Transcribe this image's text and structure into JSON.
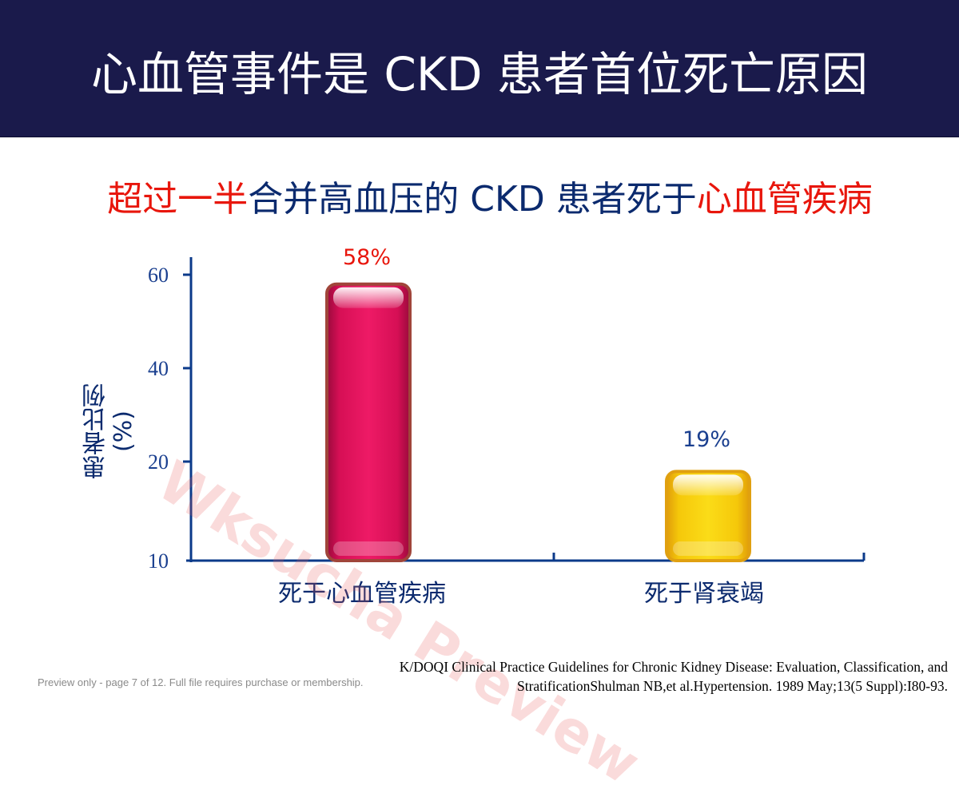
{
  "header": {
    "title": "心血管事件是 CKD 患者首位死亡原因"
  },
  "subtitle": {
    "part1": "超过一半",
    "part2": "合并高血压的 CKD 患者死于",
    "part3": "心血管疾病"
  },
  "colors": {
    "header_bg": "#1a1a4b",
    "highlight_red": "#e8160c",
    "text_blue": "#0b2a6e",
    "bar_magenta": "#e0105a",
    "bar_yellow": "#f5d20a"
  },
  "chart_data": {
    "type": "bar",
    "categories": [
      "死于心血管疾病",
      "死于肾衰竭"
    ],
    "values": [
      58,
      19
    ],
    "data_labels": [
      "58%",
      "19%"
    ],
    "ylabel_line1": "患者比例",
    "ylabel_line2": "(%)",
    "y_ticks": [
      10,
      20,
      40,
      60
    ],
    "grid": false,
    "legend": "none"
  },
  "watermark": "Wksucha Preview",
  "footer": {
    "preview_note": "Preview only - page 7 of 12. Full file requires purchase or membership.",
    "citation_line1": "K/DOQI Clinical Practice Guidelines for Chronic Kidney Disease: Evaluation, Classification, and",
    "citation_line2": "StratificationShulman NB,et al.Hypertension. 1989 May;13(5 Suppl):I80-93."
  }
}
